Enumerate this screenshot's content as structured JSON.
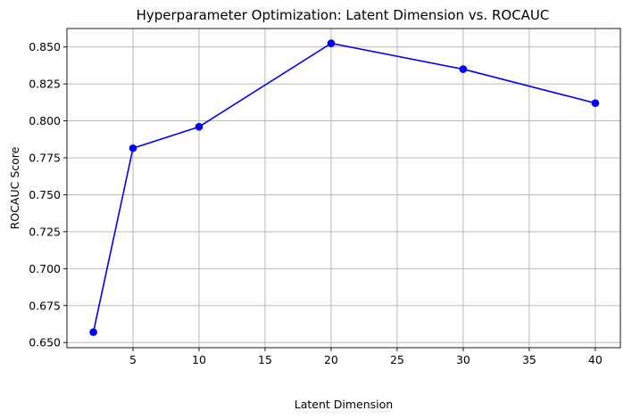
{
  "chart_data": {
    "type": "line",
    "title": "Hyperparameter Optimization: Latent Dimension vs. ROCAUC",
    "xlabel": "Latent Dimension",
    "ylabel": "ROCAUC Score",
    "xlim": [
      0,
      41.9
    ],
    "ylim": [
      0.6465,
      0.8625
    ],
    "xticks": [
      5,
      10,
      15,
      20,
      25,
      30,
      35,
      40
    ],
    "yticks": [
      0.65,
      0.675,
      0.7,
      0.725,
      0.75,
      0.775,
      0.8,
      0.825,
      0.85
    ],
    "ytick_labels": [
      "0.650",
      "0.675",
      "0.700",
      "0.725",
      "0.750",
      "0.775",
      "0.800",
      "0.825",
      "0.850"
    ],
    "grid": true,
    "series": [
      {
        "x": [
          2,
          5,
          10,
          20,
          30,
          40
        ],
        "values": [
          0.657,
          0.7815,
          0.796,
          0.8525,
          0.835,
          0.812
        ],
        "color": "#0000ff",
        "marker": "circle"
      }
    ]
  }
}
